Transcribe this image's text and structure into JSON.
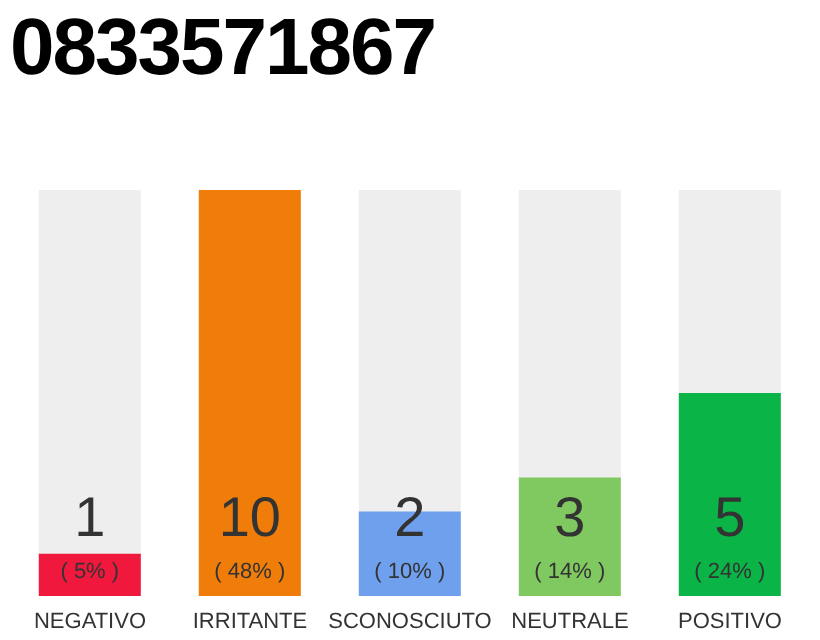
{
  "chart_data": {
    "type": "bar",
    "title": "0833571867",
    "categories": [
      "NEGATIVO",
      "IRRITANTE",
      "SCONOSCIUTO",
      "NEUTRALE",
      "POSITIVO"
    ],
    "values": [
      5,
      48,
      10,
      14,
      24
    ],
    "colors": [
      "#f0183c",
      "#f07d0a",
      "#6fa0ee",
      "#80c860",
      "#0ab446"
    ],
    "value_labels": [
      "( 5% )",
      "( 48% )",
      "( 10% )",
      "( 14% )",
      "( 24% )"
    ],
    "annotations": [
      "1",
      "10",
      "2",
      "3",
      "5"
    ],
    "tick_labels": "x"
  }
}
